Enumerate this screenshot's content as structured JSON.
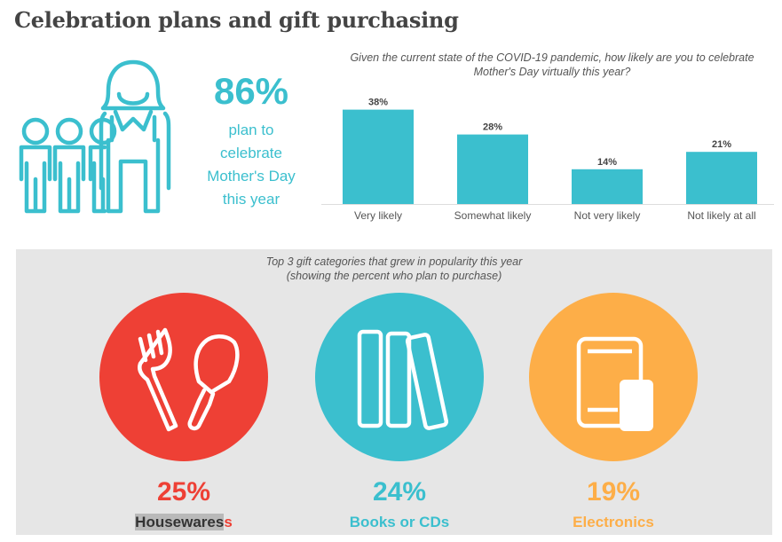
{
  "header": {
    "title": "Celebration plans and gift purchasing"
  },
  "hero": {
    "percent": "86%",
    "lines": [
      "plan to",
      "celebrate",
      "Mother's Day",
      "this year"
    ],
    "icon": "family-people-icon"
  },
  "colors": {
    "teal": "#3bbfce",
    "red": "#ee4035",
    "orange": "#fdae48",
    "panel_bg": "#e6e6e6"
  },
  "chart_data": {
    "type": "bar",
    "title": "Given the current state of the COVID-19 pandemic, how likely are you to celebrate Mother's Day virtually this year?",
    "categories": [
      "Very likely",
      "Somewhat likely",
      "Not very likely",
      "Not likely at all"
    ],
    "values": [
      38,
      28,
      14,
      21
    ],
    "value_labels": [
      "38%",
      "28%",
      "14%",
      "21%"
    ],
    "ylim": [
      0,
      40
    ],
    "grid": false,
    "color": "#3bbfce"
  },
  "gifts": {
    "question_line1": "Top 3 gift categories that grew in popularity this year",
    "question_line2": "(showing the percent who plan to purchase)",
    "items": [
      {
        "percent": "25%",
        "label_main": "Housewares",
        "label_tail": "s",
        "icon": "fork-and-trowel-icon",
        "color": "#ee4035"
      },
      {
        "percent": "24%",
        "label": "Books or CDs",
        "icon": "books-icon",
        "color": "#3bbfce"
      },
      {
        "percent": "19%",
        "label": "Electronics",
        "icon": "tablet-and-phone-icon",
        "color": "#fdae48"
      }
    ]
  }
}
